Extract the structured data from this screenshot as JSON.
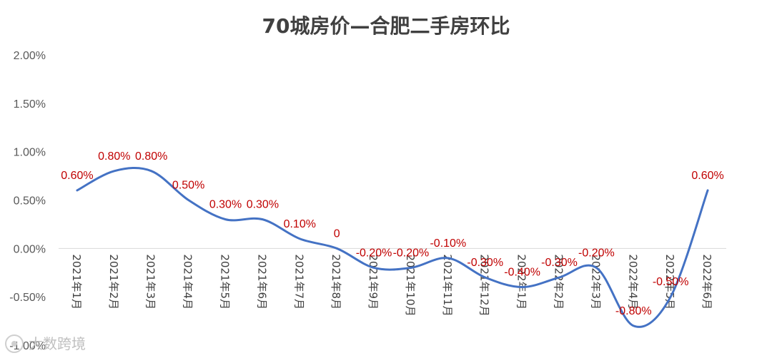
{
  "chart_data": {
    "type": "line",
    "title": "70城房价—合肥二手房环比",
    "categories": [
      "2021年1月",
      "2021年2月",
      "2021年3月",
      "2021年4月",
      "2021年5月",
      "2021年6月",
      "2021年7月",
      "2021年8月",
      "2021年9月",
      "2021年10月",
      "2021年11月",
      "2021年12月",
      "2022年1月",
      "2022年2月",
      "2022年3月",
      "2022年4月",
      "2022年5月",
      "2022年6月"
    ],
    "values": [
      0.6,
      0.8,
      0.8,
      0.5,
      0.3,
      0.3,
      0.1,
      0.0,
      -0.2,
      -0.2,
      -0.1,
      -0.3,
      -0.4,
      -0.3,
      -0.2,
      -0.8,
      -0.5,
      0.6
    ],
    "data_labels": [
      "0.60%",
      "0.80%",
      "0.80%",
      "0.50%",
      "0.30%",
      "0.30%",
      "0.10%",
      "0",
      "-0.20%",
      "-0.20%",
      "-0.10%",
      "-0.30%",
      "-0.40%",
      "-0.30%",
      "-0.20%",
      "-0.80%",
      "-0.50%",
      "0.60%"
    ],
    "yticks": [
      "2.00%",
      "1.50%",
      "1.00%",
      "0.50%",
      "0.00%",
      "-0.50%",
      "-1.00%"
    ],
    "ytick_values": [
      2.0,
      1.5,
      1.0,
      0.5,
      0.0,
      -0.5,
      -1.0
    ],
    "ylim": [
      -1.0,
      2.0
    ],
    "xlabel": "",
    "ylabel": "",
    "smooth": true,
    "grid": false,
    "legend": "none",
    "line_color": "#4472c4",
    "label_color": "#c00000"
  },
  "watermark": "大数跨境"
}
